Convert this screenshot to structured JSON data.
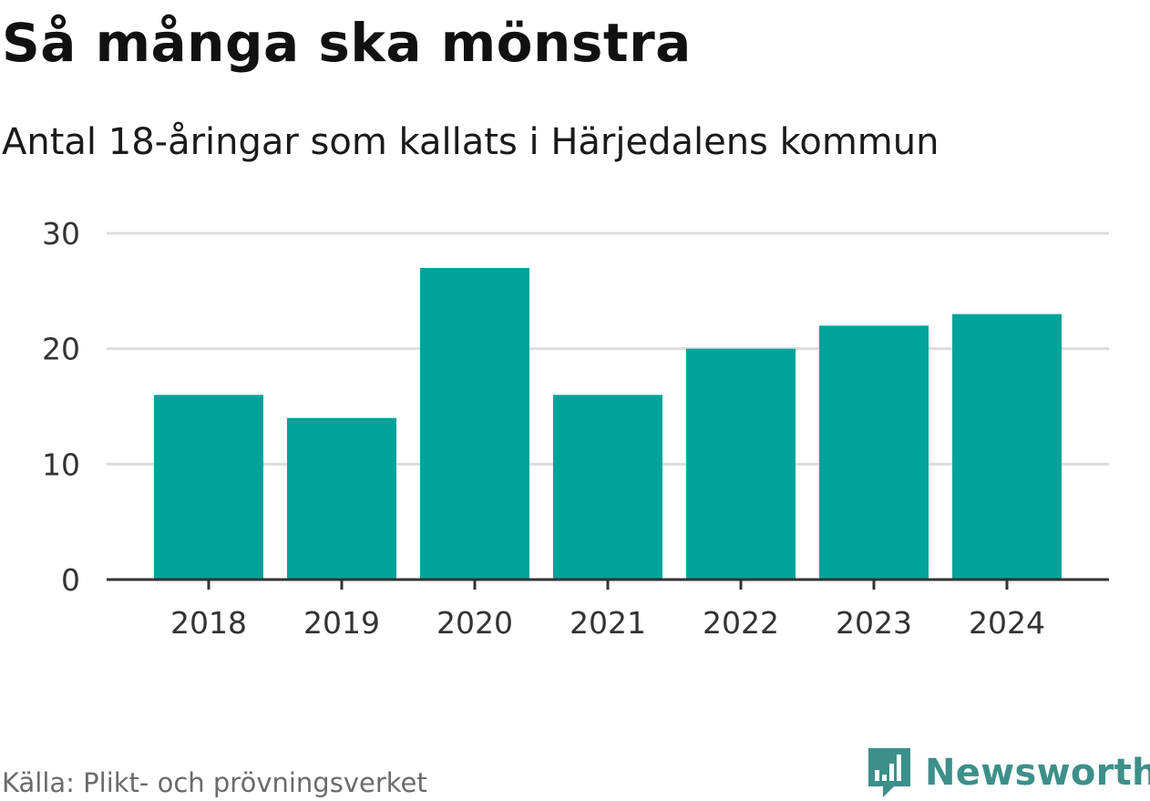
{
  "header": {
    "title": "Så många ska mönstra",
    "subtitle": "Antal 18-åringar som kallats i Härjedalens kommun"
  },
  "chart_data": {
    "type": "bar",
    "categories": [
      "2018",
      "2019",
      "2020",
      "2021",
      "2022",
      "2023",
      "2024"
    ],
    "values": [
      16,
      14,
      27,
      16,
      20,
      22,
      23
    ],
    "ylim": [
      0,
      30
    ],
    "yticks": [
      0,
      10,
      20,
      30
    ],
    "xlabel": "",
    "ylabel": "",
    "grid": true,
    "bar_color": "#00a39a"
  },
  "footer": {
    "source": "Källa: Plikt- och prövningsverket",
    "brand_name": "Newsworthy",
    "brand_color": "#3d8f8a",
    "brand_icon": "bar-chart-badge-icon"
  }
}
